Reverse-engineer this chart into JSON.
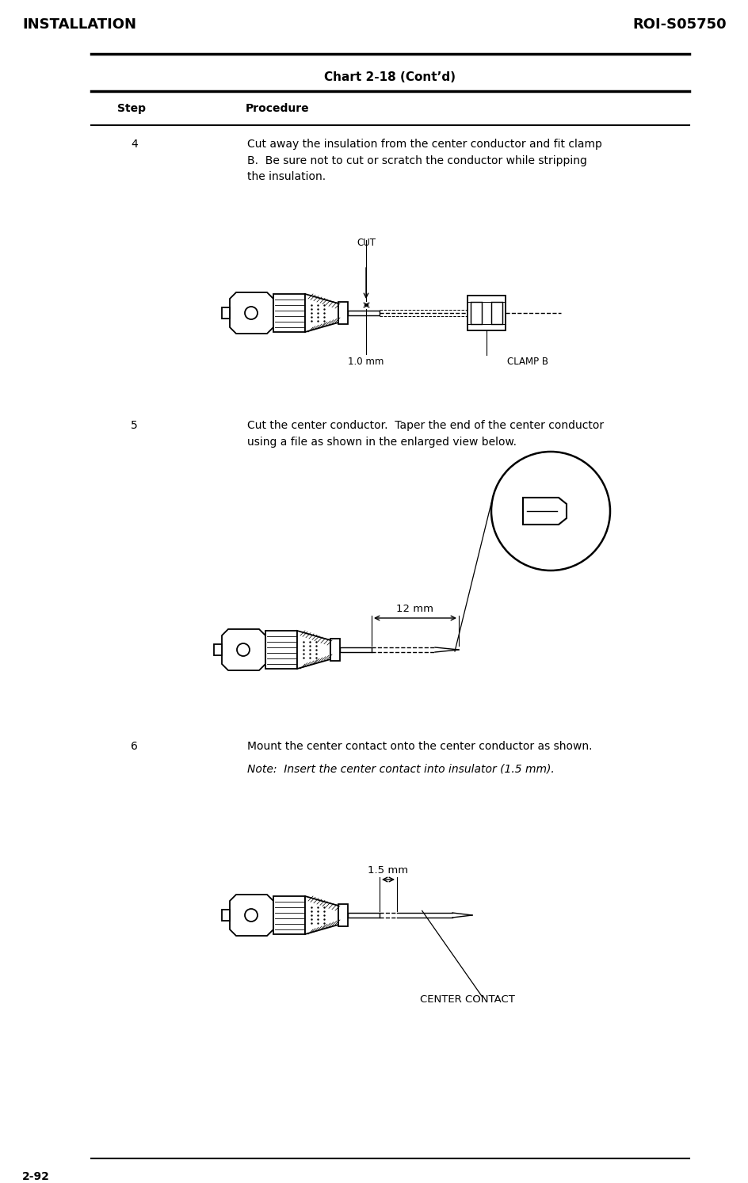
{
  "bg_color": "#ffffff",
  "header_left": "INSTALLATION",
  "header_right": "ROI-S05750",
  "footer_left": "2-92",
  "chart_title": "Chart 2-18 (Cont’d)",
  "col_step": "Step",
  "col_procedure": "Procedure",
  "step4_num": "4",
  "step4_text": "Cut away the insulation from the center conductor and fit clamp\nB.  Be sure not to cut or scratch the conductor while stripping\nthe insulation.",
  "step5_num": "5",
  "step5_text": "Cut the center conductor.  Taper the end of the center conductor\nusing a file as shown in the enlarged view below.",
  "step6_num": "6",
  "step6_text": "Mount the center contact onto the center conductor as shown.",
  "step6_note": "Note:  Insert the center contact into insulator (1.5 mm).",
  "label_1mm": "1.0 mm",
  "label_clampb": "CLAMP B",
  "label_cut": "CUT",
  "label_12mm": "12 mm",
  "label_15mm": "1.5 mm",
  "label_center_contact": "CENTER CONTACT",
  "font_header": 13,
  "font_title": 11,
  "font_step": 10,
  "font_label": 8.5
}
